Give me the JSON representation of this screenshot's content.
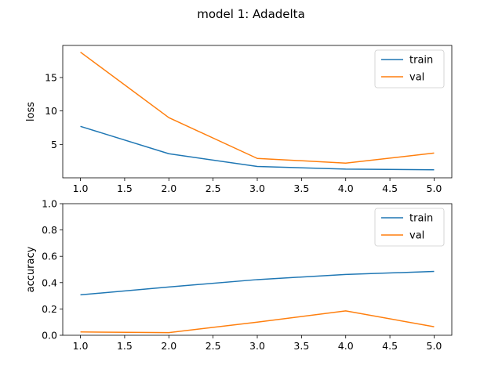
{
  "chart_data": {
    "suptitle": "model 1: Adadelta",
    "colors": {
      "train": "#1f77b4",
      "val": "#ff7f0e"
    },
    "subplots": [
      {
        "id": "loss",
        "type": "line",
        "ylabel": "loss",
        "xlim": [
          0.8,
          5.2
        ],
        "ylim": [
          0.0,
          19.8
        ],
        "xticks": [
          1.0,
          1.5,
          2.0,
          2.5,
          3.0,
          3.5,
          4.0,
          4.5,
          5.0
        ],
        "xtick_labels": [
          "1.0",
          "1.5",
          "2.0",
          "2.5",
          "3.0",
          "3.5",
          "4.0",
          "4.5",
          "5.0"
        ],
        "yticks": [
          5,
          10,
          15
        ],
        "ytick_labels": [
          "5",
          "10",
          "15"
        ],
        "legend_position": "top-right",
        "series": [
          {
            "name": "train",
            "x": [
              1,
              2,
              3,
              4,
              5
            ],
            "y": [
              7.7,
              3.6,
              1.7,
              1.3,
              1.2
            ]
          },
          {
            "name": "val",
            "x": [
              1,
              2,
              3,
              4,
              5
            ],
            "y": [
              18.8,
              9.0,
              2.9,
              2.2,
              3.7
            ]
          }
        ]
      },
      {
        "id": "accuracy",
        "type": "line",
        "ylabel": "accuracy",
        "xlim": [
          0.8,
          5.2
        ],
        "ylim": [
          0.0,
          1.0
        ],
        "xticks": [
          1.0,
          1.5,
          2.0,
          2.5,
          3.0,
          3.5,
          4.0,
          4.5,
          5.0
        ],
        "xtick_labels": [
          "1.0",
          "1.5",
          "2.0",
          "2.5",
          "3.0",
          "3.5",
          "4.0",
          "4.5",
          "5.0"
        ],
        "yticks": [
          0.0,
          0.2,
          0.4,
          0.6,
          0.8,
          1.0
        ],
        "ytick_labels": [
          "0.0",
          "0.2",
          "0.4",
          "0.6",
          "0.8",
          "1.0"
        ],
        "legend_position": "top-right",
        "series": [
          {
            "name": "train",
            "x": [
              1,
              2,
              3,
              4,
              5
            ],
            "y": [
              0.307,
              0.367,
              0.423,
              0.462,
              0.485
            ]
          },
          {
            "name": "val",
            "x": [
              1,
              2,
              3,
              4,
              5
            ],
            "y": [
              0.025,
              0.02,
              0.1,
              0.185,
              0.065
            ]
          }
        ]
      }
    ]
  }
}
